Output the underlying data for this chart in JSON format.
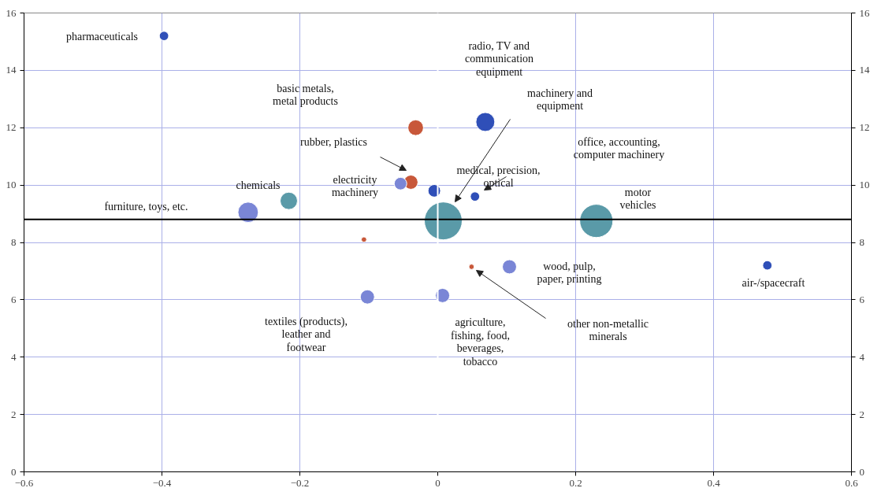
{
  "chart_data": {
    "type": "bubble",
    "x": [
      -0.397,
      -0.032,
      0.069,
      -0.039,
      -0.054,
      -0.005,
      0.054,
      0.008,
      -0.216,
      -0.275,
      0.23,
      -0.107,
      0.104,
      0.049,
      0.478,
      -0.102,
      0.007
    ],
    "values": [
      15.2,
      12.0,
      12.2,
      10.1,
      10.05,
      9.8,
      9.6,
      8.75,
      9.45,
      9.05,
      8.75,
      8.1,
      7.15,
      7.15,
      7.2,
      6.1,
      6.15
    ],
    "sizes": [
      0.06,
      0.17,
      0.25,
      0.14,
      0.11,
      0.11,
      0.06,
      1,
      0.21,
      0.29,
      0.77,
      0.02,
      0.14,
      0.02,
      0.06,
      0.14,
      0.14
    ],
    "colors": [
      "#2f4fb8",
      "#c8583a",
      "#2f4fb8",
      "#c8583a",
      "#7a86d6",
      "#2f4fb8",
      "#2f4fb8",
      "#5a9aa8",
      "#5a9aa8",
      "#7a86d6",
      "#5a9aa8",
      "#c8583a",
      "#7a86d6",
      "#c8583a",
      "#2f4fb8",
      "#7a86d6",
      "#7a86d6"
    ],
    "xlim": [
      -0.6,
      0.6
    ],
    "xticks": [
      -0.6,
      -0.4,
      -0.2,
      0,
      0.2,
      0.4,
      0.6
    ],
    "ylim": [
      0,
      16
    ],
    "yticks": [
      0,
      2,
      4,
      6,
      8,
      10,
      12,
      14,
      16
    ],
    "y2lim": [
      0,
      16
    ],
    "y2ticks": [
      0,
      2,
      4,
      6,
      8,
      10,
      12,
      14,
      16
    ],
    "grid": true,
    "ref_lines": [
      {
        "axis": "y",
        "value": 8.8,
        "color": "#000000"
      },
      {
        "axis": "x",
        "value": 0,
        "color": "#ffffff"
      }
    ],
    "annotations": [
      "pharmaceuticals",
      "radio, TV and\ncommunication\nequipment",
      "basic metals,\nmetal products",
      "machinery and\nequipment",
      "rubber, plastics",
      "electricity\nmachinery",
      "medical, precision,\noptical",
      "office, accounting,\ncomputer machinery",
      "chemicals",
      "furniture, toys, etc.",
      "motor\nvehicles",
      "wood, pulp,\npaper, printing",
      "other non-metallic\nminerals",
      "air-/spacecraft",
      "textiles (products),\nleather and\nfootwear",
      "agriculture,\nfishing, food,\nbeverages,\ntobacco"
    ]
  }
}
